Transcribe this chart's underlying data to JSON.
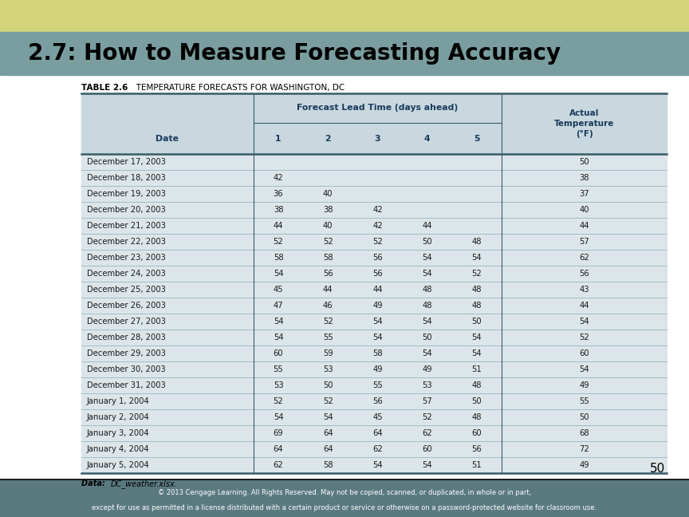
{
  "title": "2.7: How to Measure Forecasting Accuracy",
  "title_bg": "#7a9e9f",
  "title_top_strip": "#d4d47a",
  "title_fontsize": 20,
  "table_title_bold": "TABLE 2.6",
  "table_title_rest": "   TEMPERATURE FORECASTS FOR WASHINGTON, DC",
  "header_row1_center": "Forecast Lead Time (days ahead)",
  "footer_text1": "© 2013 Cengage Learning. All Rights Reserved. May not be copied, scanned, or duplicated, in whole or in part,",
  "footer_text2": "except for use as permitted in a license distributed with a certain product or service or otherwise on a password-protected website for classroom use.",
  "footer_bg": "#5a7a80",
  "page_number": "50",
  "table_bg": "#dce6ea",
  "table_header_bg": "#c8d8de",
  "table_header_color": "#1a3a5c",
  "table_data_color": "#1a1a1a",
  "row_line_color": "#8aabba",
  "border_color": "#3a5a6a",
  "rows": [
    [
      "December 17, 2003",
      "",
      "",
      "",
      "",
      "",
      "50"
    ],
    [
      "December 18, 2003",
      "42",
      "",
      "",
      "",
      "",
      "38"
    ],
    [
      "December 19, 2003",
      "36",
      "40",
      "",
      "",
      "",
      "37"
    ],
    [
      "December 20, 2003",
      "38",
      "38",
      "42",
      "",
      "",
      "40"
    ],
    [
      "December 21, 2003",
      "44",
      "40",
      "42",
      "44",
      "",
      "44"
    ],
    [
      "December 22, 2003",
      "52",
      "52",
      "52",
      "50",
      "48",
      "57"
    ],
    [
      "December 23, 2003",
      "58",
      "58",
      "56",
      "54",
      "54",
      "62"
    ],
    [
      "December 24, 2003",
      "54",
      "56",
      "56",
      "54",
      "52",
      "56"
    ],
    [
      "December 25, 2003",
      "45",
      "44",
      "44",
      "48",
      "48",
      "43"
    ],
    [
      "December 26, 2003",
      "47",
      "46",
      "49",
      "48",
      "48",
      "44"
    ],
    [
      "December 27, 2003",
      "54",
      "52",
      "54",
      "54",
      "50",
      "54"
    ],
    [
      "December 28, 2003",
      "54",
      "55",
      "54",
      "50",
      "54",
      "52"
    ],
    [
      "December 29, 2003",
      "60",
      "59",
      "58",
      "54",
      "54",
      "60"
    ],
    [
      "December 30, 2003",
      "55",
      "53",
      "49",
      "49",
      "51",
      "54"
    ],
    [
      "December 31, 2003",
      "53",
      "50",
      "55",
      "53",
      "48",
      "49"
    ],
    [
      "January 1, 2004",
      "52",
      "52",
      "56",
      "57",
      "50",
      "55"
    ],
    [
      "January 2, 2004",
      "54",
      "54",
      "45",
      "52",
      "48",
      "50"
    ],
    [
      "January 3, 2004",
      "69",
      "64",
      "64",
      "62",
      "60",
      "68"
    ],
    [
      "January 4, 2004",
      "64",
      "64",
      "62",
      "60",
      "56",
      "72"
    ],
    [
      "January 5, 2004",
      "62",
      "58",
      "54",
      "54",
      "51",
      "49"
    ]
  ]
}
